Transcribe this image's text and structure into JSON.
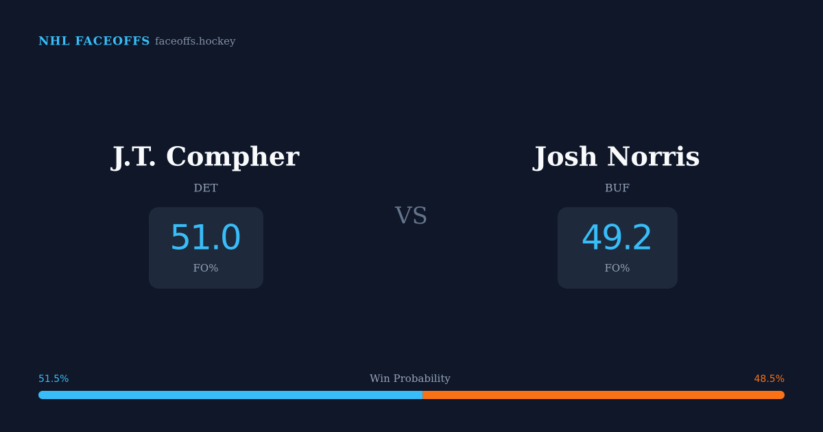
{
  "header": {
    "brand": "NHL FACEOFFS",
    "site": "faceoffs.hockey"
  },
  "players": [
    {
      "name": "J.T. Compher",
      "team": "DET",
      "fo_pct": "51.0",
      "fo_label": "FO%"
    },
    {
      "name": "Josh Norris",
      "team": "BUF",
      "fo_pct": "49.2",
      "fo_label": "FO%"
    }
  ],
  "vs": "VS",
  "win_probability": {
    "label": "Win Probability",
    "values": [
      51.5,
      48.5
    ],
    "value_labels": [
      "51.5%",
      "48.5%"
    ],
    "colors": [
      "#38bdf8",
      "#f97316"
    ]
  }
}
